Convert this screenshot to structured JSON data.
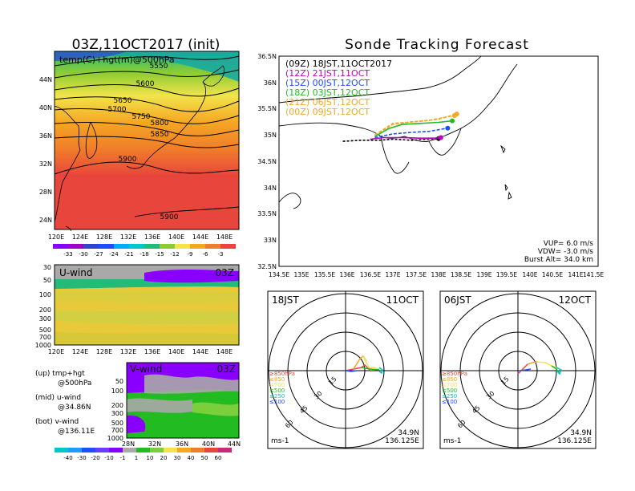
{
  "colors": {
    "magenta": "#c000c0",
    "purple": "#8a00ff",
    "blue": "#1e4cff",
    "cyan": "#00c8c8",
    "green": "#22bb22",
    "yellow": "#f2e44a",
    "orange": "#f5a623",
    "red": "#e8453c",
    "grey": "#a9a9a9",
    "black": "#000000"
  },
  "left": {
    "title": "03Z,11OCT2017 (init)",
    "map_label": "temp(C)+hgt(m)@500hPa",
    "lat_ticks": [
      "44N",
      "40N",
      "36N",
      "32N",
      "28N",
      "24N"
    ],
    "lon_ticks": [
      "120E",
      "124E",
      "128E",
      "132E",
      "136E",
      "140E",
      "144E",
      "148E"
    ],
    "contours": [
      "5550",
      "5600",
      "5650",
      "5700",
      "5750",
      "5800",
      "5850",
      "5900",
      "5900"
    ],
    "colorbar_temp": [
      "-33",
      "-30",
      "-27",
      "-24",
      "-21",
      "-18",
      "-15",
      "-12",
      "-9",
      "-6",
      "-3"
    ],
    "uwind_label": "U-wind",
    "uwind_time": "03Z",
    "uwind_p_ticks": [
      "30",
      "50",
      "100",
      "200",
      "300",
      "500",
      "700",
      "1000"
    ],
    "vwind_label": "V-wind",
    "vwind_time": "03Z",
    "vwind_p_ticks": [
      "50",
      "100",
      "200",
      "300",
      "500",
      "700",
      "1000"
    ],
    "vwind_lat_ticks": [
      "28N",
      "32N",
      "36N",
      "40N",
      "44N"
    ],
    "notes": [
      {
        "a": "(up) tmp+hgt",
        "b": "@500hPa"
      },
      {
        "a": "(mid) u-wind",
        "b": "@34.86N"
      },
      {
        "a": "(bot) v-wind",
        "b": "@136.11E"
      }
    ],
    "colorbar_wind": [
      "-40",
      "-30",
      "-20",
      "-10",
      "-1",
      "1",
      "10",
      "20",
      "30",
      "40",
      "50",
      "60"
    ]
  },
  "right": {
    "title": "Sonde Tracking Forecast",
    "lat_ticks": [
      "36.5N",
      "36N",
      "35.5N",
      "35N",
      "34.5N",
      "34N",
      "33.5N",
      "33N",
      "32.5N"
    ],
    "lon_ticks": [
      "134.5E",
      "135E",
      "135.5E",
      "136E",
      "136.5E",
      "137E",
      "137.5E",
      "138E",
      "138.5E",
      "139E",
      "139.5E",
      "140E",
      "140.5E",
      "141E",
      "141.5E"
    ],
    "legend": [
      {
        "text": "(09Z)  18JST,11OCT2017",
        "color": "#000000"
      },
      {
        "text": "(12Z)  21JST,11OCT",
        "color": "#c000c0"
      },
      {
        "text": "(15Z)  00JST,12OCT",
        "color": "#1e4cff"
      },
      {
        "text": "(18Z)  03JST,12OCT",
        "color": "#22bb22"
      },
      {
        "text": "(21Z)  06JST,12OCT",
        "color": "#f5a623"
      },
      {
        "text": "(00Z)  09JST,12OCT",
        "color": "#f5a623"
      }
    ],
    "params": [
      "VUP=  6.0  m/s",
      "VDW= -3.0  m/s",
      "Burst Alt=  34.0  km"
    ]
  },
  "polar1": {
    "time": "18JST",
    "date": "11OCT",
    "pos1": "34.9N",
    "pos2": "136.125E",
    "unit": "ms-1",
    "rings": [
      "15",
      "30",
      "45",
      "60"
    ],
    "levels": [
      "≥850hPa",
      "≤850",
      "≤700",
      "≤500",
      "≤250",
      "≤100"
    ]
  },
  "polar2": {
    "time": "06JST",
    "date": "12OCT",
    "pos1": "34.9N",
    "pos2": "136.125E",
    "unit": "ms-1",
    "rings": [
      "15",
      "30",
      "45",
      "60"
    ],
    "levels": [
      "≥850hPa",
      "≤850",
      "≤700",
      "≤500",
      "≤250",
      "≤100"
    ]
  },
  "chart_data": [
    {
      "type": "heatmap",
      "title": "03Z,11OCT2017 (init)",
      "subtitle": "temp(C)+hgt(m)@500hPa",
      "xlim": [
        120,
        150
      ],
      "ylim": [
        22,
        46
      ],
      "contour_levels": [
        5550,
        5600,
        5650,
        5700,
        5750,
        5800,
        5850,
        5900
      ],
      "colorbar": [
        -33,
        -30,
        -27,
        -24,
        -21,
        -18,
        -15,
        -12,
        -9,
        -6,
        -3
      ]
    },
    {
      "type": "line",
      "title": "Sonde Tracking Forecast",
      "xlim": [
        134.5,
        141.5
      ],
      "ylim": [
        32.5,
        36.5
      ],
      "series": [
        {
          "name": "(09Z)  18JST,11OCT2017",
          "x": [
            135.9,
            136.3,
            136.7,
            137.0,
            137.4,
            137.8,
            138.0
          ],
          "y": [
            34.88,
            34.9,
            34.9,
            34.92,
            34.9,
            34.92,
            34.93
          ]
        },
        {
          "name": "(12Z)  21JST,11OCT",
          "x": [
            136.5,
            136.8,
            137.2,
            137.6,
            137.9,
            138.05
          ],
          "y": [
            34.92,
            34.95,
            34.95,
            34.94,
            34.94,
            34.95
          ]
        },
        {
          "name": "(15Z)  00JST,12OCT",
          "x": [
            136.6,
            137.0,
            137.4,
            137.8,
            138.2
          ],
          "y": [
            34.95,
            35.02,
            35.05,
            35.07,
            35.13
          ]
        },
        {
          "name": "(18Z)  03JST,12OCT",
          "x": [
            136.6,
            136.9,
            137.2,
            137.6,
            138.0,
            138.3
          ],
          "y": [
            34.97,
            35.12,
            35.2,
            35.22,
            35.24,
            35.27
          ]
        },
        {
          "name": "(21Z)  06JST,12OCT",
          "x": [
            136.6,
            137.0,
            137.4,
            137.8,
            138.1,
            138.35
          ],
          "y": [
            35.0,
            35.2,
            35.25,
            35.28,
            35.33,
            35.37
          ]
        },
        {
          "name": "(00Z)  09JST,12OCT",
          "x": [
            136.6,
            137.0,
            137.3,
            137.7,
            138.0,
            138.4
          ],
          "y": [
            35.0,
            35.22,
            35.24,
            35.27,
            35.3,
            35.4
          ]
        }
      ]
    }
  ]
}
